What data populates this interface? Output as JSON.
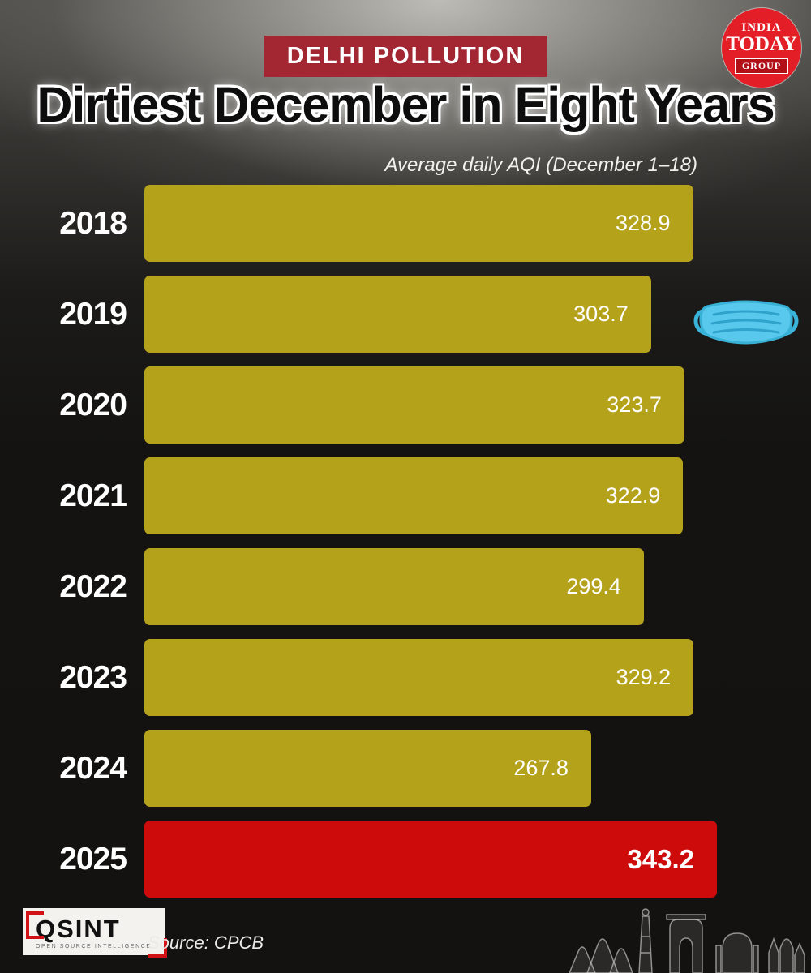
{
  "header": {
    "badge": "DELHI POLLUTION",
    "title": "Dirtiest December in Eight Years",
    "subtitle": "Average daily AQI (December 1–18)"
  },
  "brand": {
    "india": "INDIA",
    "today": "TODAY",
    "group": "GROUP"
  },
  "chart_data": {
    "type": "bar",
    "orientation": "horizontal",
    "title": "Dirtiest December in Eight Years",
    "subtitle": "Average daily AQI (December 1–18)",
    "categories": [
      "2018",
      "2019",
      "2020",
      "2021",
      "2022",
      "2023",
      "2024",
      "2025"
    ],
    "values": [
      328.9,
      303.7,
      323.7,
      322.9,
      299.4,
      329.2,
      267.8,
      343.2
    ],
    "highlight_index": 7,
    "xlim": [
      0,
      343.2
    ],
    "bar_color": "#b5a21b",
    "highlight_color": "#ce0b0b",
    "value_label_color": "#ffffff",
    "grid": false,
    "legend": "none"
  },
  "footer": {
    "qsint_label": "QSINT",
    "qsint_sub": "OPEN SOURCE INTELLIGENCE",
    "source": "Source: CPCB"
  }
}
